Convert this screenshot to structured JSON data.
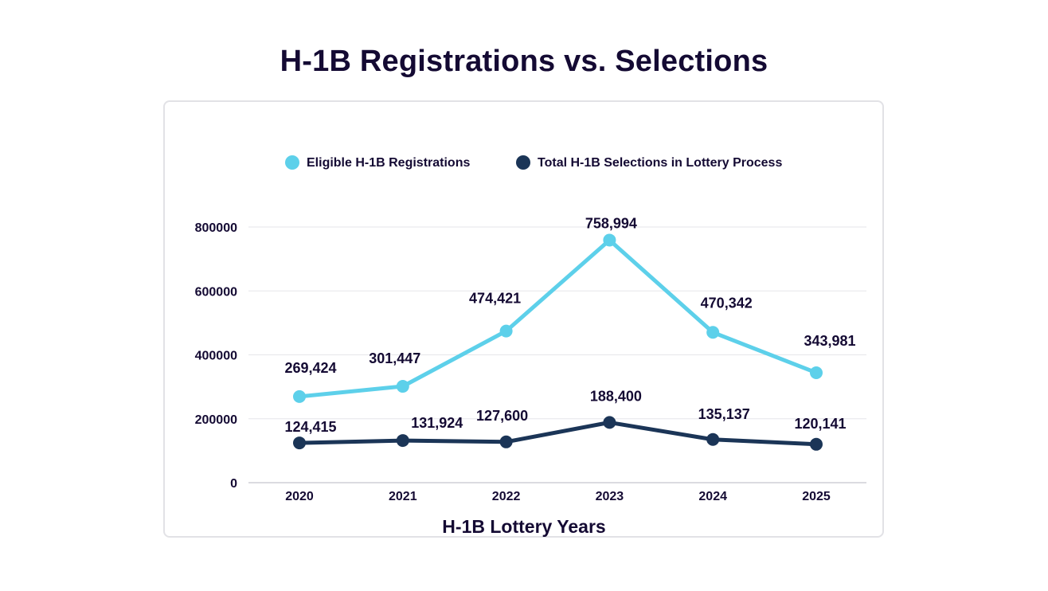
{
  "chart_data": {
    "type": "line",
    "title": "H-1B Registrations vs. Selections",
    "xlabel": "H-1B Lottery Years",
    "ylabel": "",
    "categories": [
      "2020",
      "2021",
      "2022",
      "2023",
      "2024",
      "2025"
    ],
    "yticks": [
      "0",
      "200000",
      "400000",
      "600000",
      "800000"
    ],
    "ylim": [
      0,
      800000
    ],
    "legend_position": "top",
    "grid": true,
    "series": [
      {
        "name": "Eligible H-1B Registrations",
        "color": "#5dd0ea",
        "values": [
          269424,
          301447,
          474421,
          758994,
          470342,
          343981
        ],
        "labels": [
          "269,424",
          "301,447",
          "474,421",
          "758,994",
          "470,342",
          "343,981"
        ]
      },
      {
        "name": "Total H-1B Selections in Lottery Process",
        "color": "#1b3557",
        "values": [
          124415,
          131924,
          127600,
          188400,
          135137,
          120141
        ],
        "labels": [
          "124,415",
          "131,924",
          "127,600",
          "188,400",
          "135,137",
          "120,141"
        ]
      }
    ]
  },
  "colors": {
    "text": "#140a33",
    "grid": "#e6e6ea",
    "axis": "#cfcfd6",
    "card_border": "#e2e2e6"
  }
}
